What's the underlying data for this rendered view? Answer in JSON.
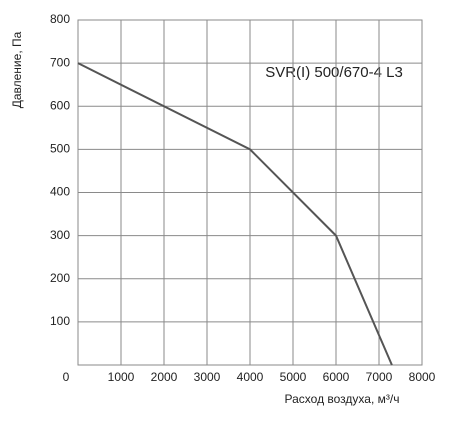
{
  "chart_data": {
    "type": "line",
    "annotation": "SVR(I) 500/670-4 L3",
    "xlabel": "Расход воздуха, м³/ч",
    "ylabel": "Давление, Па",
    "x": [
      0,
      4000,
      6000,
      7300
    ],
    "series": [
      {
        "color": "#555555",
        "values": [
          700,
          500,
          300,
          0
        ]
      }
    ],
    "xlim": [
      0,
      8000
    ],
    "xticks": [
      0,
      1000,
      2000,
      3000,
      4000,
      5000,
      6000,
      7000,
      8000
    ],
    "ylim": [
      0,
      800
    ],
    "yticks": [
      100,
      200,
      300,
      400,
      500,
      600,
      700,
      800
    ],
    "grid": true
  }
}
